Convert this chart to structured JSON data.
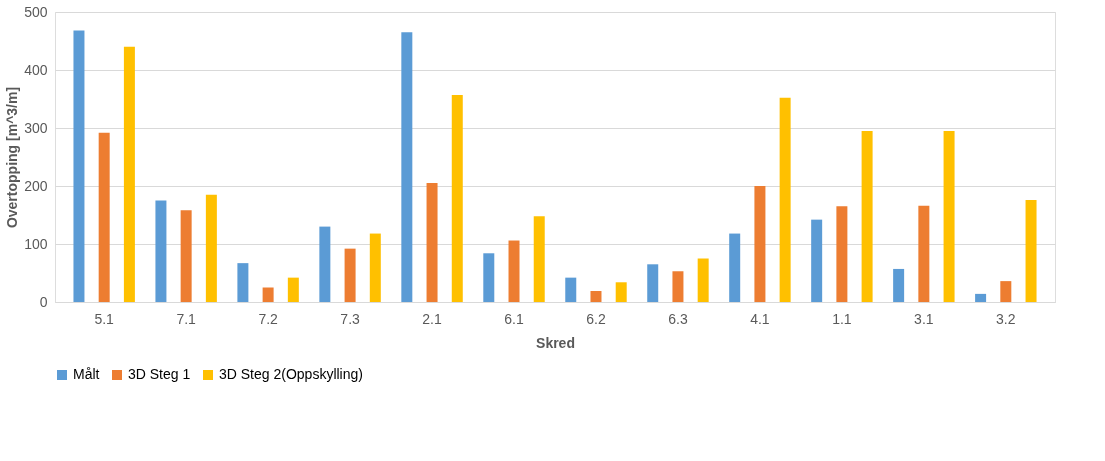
{
  "chart_data": {
    "type": "bar",
    "xlabel": "Skred",
    "ylabel": "Overtopping [m^3/m]",
    "categories": [
      "5.1",
      "7.1",
      "7.2",
      "7.3",
      "2.1",
      "6.1",
      "6.2",
      "6.3",
      "4.1",
      "1.1",
      "3.1",
      "3.2"
    ],
    "series": [
      {
        "name": "Målt",
        "color": "#5b9bd5",
        "values": [
          468,
          175,
          67,
          130,
          465,
          84,
          42,
          65,
          118,
          142,
          57,
          14
        ]
      },
      {
        "name": "3D Steg 1",
        "color": "#ed7d31",
        "values": [
          292,
          158,
          25,
          92,
          205,
          106,
          19,
          53,
          200,
          165,
          166,
          36
        ]
      },
      {
        "name": "3D Steg 2(Oppskylling)",
        "color": "#ffc000",
        "values": [
          440,
          185,
          42,
          118,
          357,
          148,
          34,
          75,
          352,
          295,
          295,
          176
        ]
      }
    ],
    "ylim": [
      0,
      500
    ],
    "yticks": [
      0,
      100,
      200,
      300,
      400,
      500
    ],
    "grid": "y",
    "legend": "bottom"
  }
}
